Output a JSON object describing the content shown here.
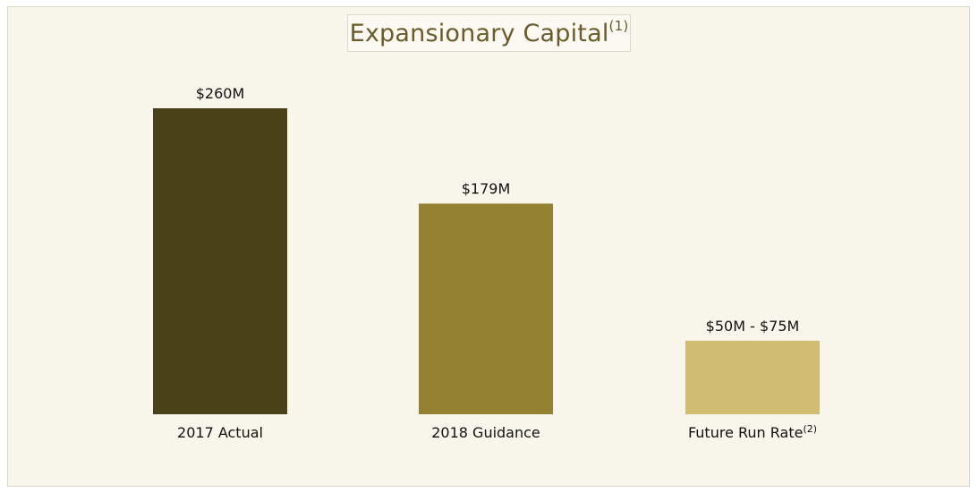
{
  "chart_data": {
    "type": "bar",
    "title": "Expansionary Capital",
    "title_superscript": "(1)",
    "categories": [
      "2017 Actual",
      "2018 Guidance",
      "Future Run Rate"
    ],
    "category_superscripts": [
      "",
      "",
      "(2)"
    ],
    "values": [
      260,
      179,
      62.5
    ],
    "data_labels": [
      "$260M",
      "$179M",
      "$50M - $75M"
    ],
    "colors": [
      "#4a4118",
      "#948131",
      "#d1bd71"
    ],
    "ylim": [
      0,
      260
    ],
    "grid": false,
    "legend": "none"
  }
}
